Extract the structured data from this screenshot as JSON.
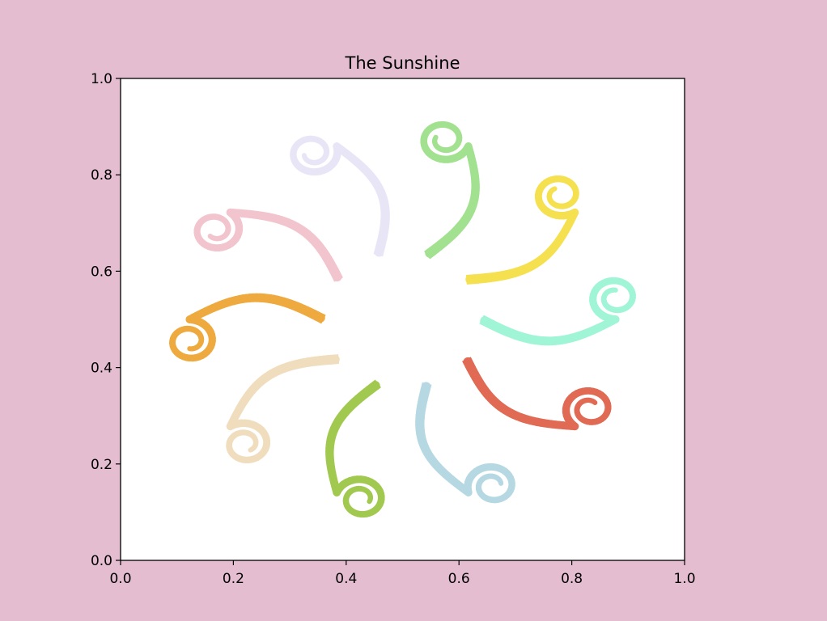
{
  "figure": {
    "background": "#e4bdd0"
  },
  "chart_data": {
    "type": "line",
    "title": "The Sunshine",
    "xlabel": "",
    "ylabel": "",
    "xlim": [
      0.0,
      1.0
    ],
    "ylim": [
      0.0,
      1.0
    ],
    "grid": false,
    "plot_background": "#ffffff",
    "x_ticks": [
      "0.0",
      "0.2",
      "0.4",
      "0.6",
      "0.8",
      "1.0"
    ],
    "y_ticks": [
      "0.0",
      "0.2",
      "0.4",
      "0.6",
      "0.8",
      "1.0"
    ],
    "center": [
      0.5,
      0.5
    ],
    "inner_radius": 0.14,
    "arm_length": 0.33,
    "curl_turns": 1.5,
    "series": [
      {
        "angle_deg": 0,
        "color": "#9ff5d5",
        "curl": -1
      },
      {
        "angle_deg": 36,
        "color": "#f5e04f",
        "curl": -1
      },
      {
        "angle_deg": 72,
        "color": "#a2e18f",
        "curl": -1
      },
      {
        "angle_deg": 108,
        "color": "#e8e6f6",
        "curl": -1
      },
      {
        "angle_deg": 144,
        "color": "#f2c4cd",
        "curl": -1
      },
      {
        "angle_deg": 180,
        "color": "#eeaa3e",
        "curl": -1
      },
      {
        "angle_deg": 216,
        "color": "#f0ddbd",
        "curl": -1
      },
      {
        "angle_deg": 252,
        "color": "#a1c94f",
        "curl": -1
      },
      {
        "angle_deg": 288,
        "color": "#b5d8e3",
        "curl": -1
      },
      {
        "angle_deg": 324,
        "color": "#e06a54",
        "curl": -1
      }
    ]
  }
}
